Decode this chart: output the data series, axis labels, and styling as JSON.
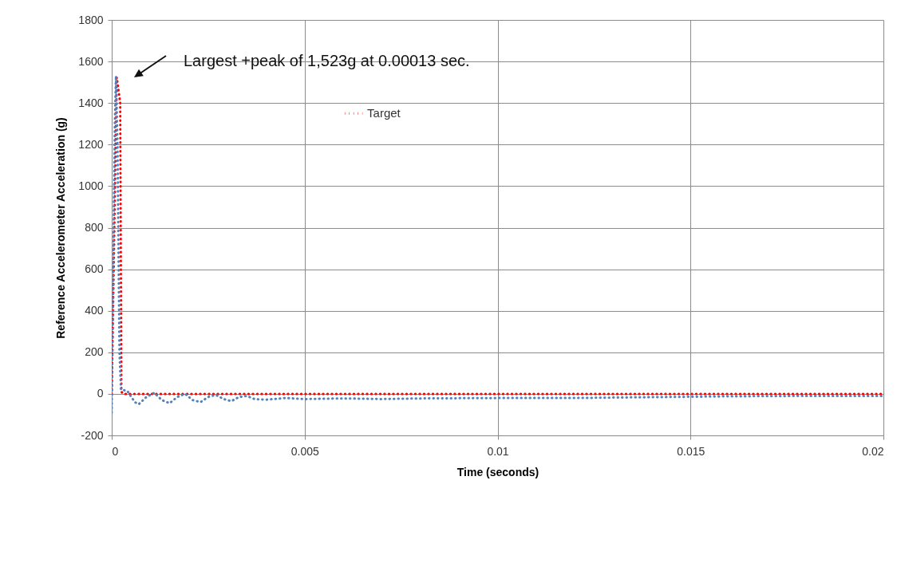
{
  "chart_data": {
    "type": "line",
    "xlabel": "Time (seconds)",
    "ylabel": "Reference Accelerometer Acceleration (g)",
    "xlim": [
      0,
      0.02
    ],
    "xticks": [
      0,
      0.005,
      0.01,
      0.015,
      0.02
    ],
    "ylim": [
      -200,
      1800
    ],
    "yticks": [
      -200,
      0,
      200,
      400,
      600,
      800,
      1000,
      1200,
      1400,
      1600,
      1800
    ],
    "grid": true,
    "legend": "top",
    "line_style": "dotted",
    "annotations": [
      "Largest +peak of 1,523g at 0.00013 sec."
    ],
    "series": [
      {
        "name": "Target",
        "color": "#ff0000",
        "x": [
          0,
          0.00013,
          0.00022,
          0.00025,
          0.0003,
          0.02
        ],
        "values": [
          0,
          1523,
          1400,
          10,
          0,
          0
        ]
      },
      {
        "color": "#4f81bd",
        "x": [
          0,
          3e-05,
          8e-05,
          0.00011,
          0.00015,
          0.0002,
          0.00024,
          0.0004,
          0.0006,
          0.0007,
          0.0009,
          0.0011,
          0.0013,
          0.0015,
          0.0017,
          0.0019,
          0.0021,
          0.0023,
          0.0025,
          0.0027,
          0.0029,
          0.0031,
          0.0033,
          0.0035,
          0.0037,
          0.004,
          0.0045,
          0.005,
          0.006,
          0.007,
          0.008,
          0.01,
          0.012,
          0.014,
          0.016,
          0.018,
          0.02
        ],
        "values": [
          -90,
          400,
          1300,
          1530,
          1200,
          200,
          20,
          15,
          -40,
          -50,
          -15,
          5,
          -30,
          -45,
          -15,
          0,
          -30,
          -40,
          -15,
          -5,
          -25,
          -35,
          -15,
          -10,
          -25,
          -28,
          -20,
          -25,
          -22,
          -25,
          -22,
          -20,
          -20,
          -16,
          -12,
          -10,
          -10
        ]
      }
    ]
  }
}
